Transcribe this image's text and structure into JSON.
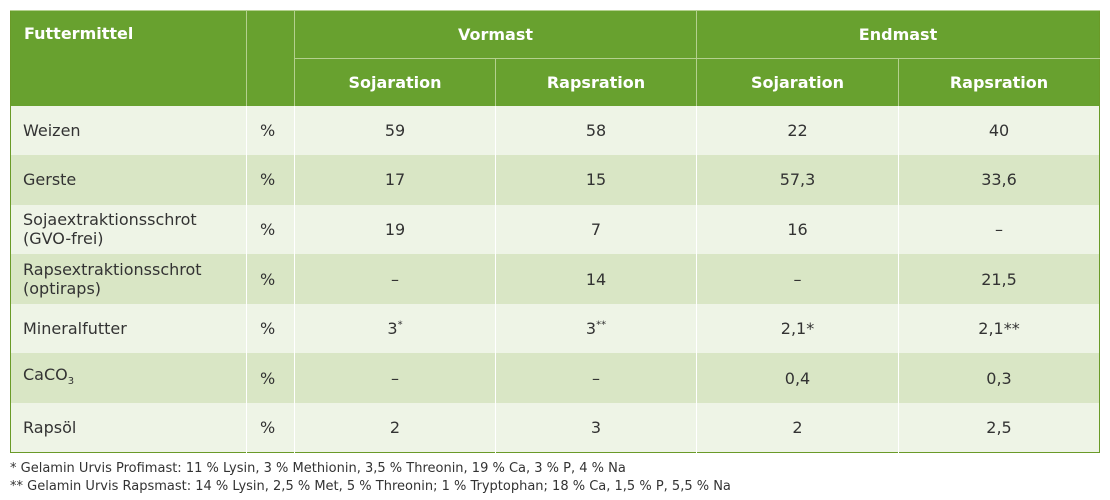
{
  "header": {
    "col_feed": "Futtermittel",
    "col_unit": "",
    "group1": "Vormast",
    "group2": "Endmast",
    "sub": [
      "Sojaration",
      "Rapsration",
      "Sojaration",
      "Rapsration"
    ]
  },
  "rows": [
    {
      "line1": "Weizen",
      "line2": "",
      "unit": "%",
      "values": [
        "59",
        "58",
        "22",
        "40"
      ],
      "shade": "light"
    },
    {
      "line1": "Gerste",
      "line2": "",
      "unit": "%",
      "values": [
        "17",
        "15",
        "57,3",
        "33,6"
      ],
      "shade": "dark"
    },
    {
      "line1": "Sojaextraktionsschrot",
      "line2": "(GVO-frei)",
      "unit": "%",
      "values": [
        "19",
        "7",
        "16",
        "–"
      ],
      "shade": "light"
    },
    {
      "line1": "Rapsextraktionsschrot",
      "line2": "(optiraps)",
      "unit": "%",
      "values": [
        "–",
        "14",
        "–",
        "21,5"
      ],
      "shade": "dark"
    },
    {
      "line1": "Mineralfutter",
      "line2": "",
      "unit": "%",
      "values": [
        "3",
        "3",
        "2,1*",
        "2,1**"
      ],
      "sup": [
        "*",
        "**",
        "",
        ""
      ],
      "shade": "light"
    },
    {
      "line1": "CaCO",
      "sub": "3",
      "line2": "",
      "unit": "%",
      "values": [
        "–",
        "–",
        "0,4",
        "0,3"
      ],
      "shade": "dark"
    },
    {
      "line1": "Rapsöl",
      "line2": "",
      "unit": "%",
      "values": [
        "2",
        "3",
        "2",
        "2,5"
      ],
      "shade": "light"
    }
  ],
  "footnotes": [
    "* Gelamin Urvis Profimast: 11 % Lysin, 3 % Methionin, 3,5 % Threonin, 19 % Ca, 3 % P, 4 % Na",
    "** Gelamin Urvis Rapsmast: 14 % Lysin, 2,5 % Met, 5 % Threonin; 1 % Tryptophan; 18 % Ca, 1,5 % P, 5,5 % Na"
  ]
}
